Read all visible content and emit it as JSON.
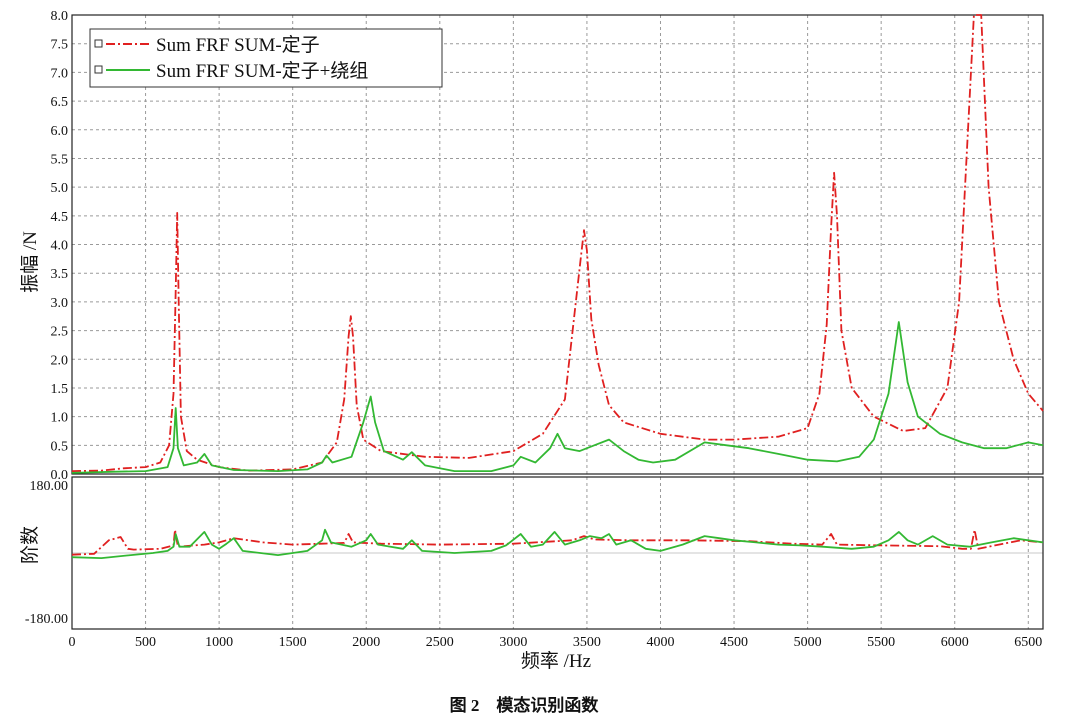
{
  "caption": "图 2　模态识别函数",
  "chart_data": [
    {
      "type": "line",
      "panel": "magnitude",
      "ylabel": "振幅 /N",
      "xlabel": "频率 /Hz",
      "xlim": [
        0,
        6600
      ],
      "ylim": [
        0,
        8.0
      ],
      "x_ticks": [
        "0",
        "500",
        "1000",
        "1500",
        "2000",
        "2500",
        "3000",
        "3500",
        "4000",
        "4500",
        "5000",
        "5500",
        "6000",
        "6500"
      ],
      "y_ticks": [
        "0.0",
        "0.5",
        "1.0",
        "1.5",
        "2.0",
        "2.5",
        "3.0",
        "3.5",
        "4.0",
        "4.5",
        "5.0",
        "5.5",
        "6.0",
        "6.5",
        "7.0",
        "7.5",
        "8.0"
      ],
      "grid": true,
      "legend_position": "top-left",
      "series": [
        {
          "name": "Sum FRF SUM-定子",
          "color": "#e02020",
          "style": "dash-dot",
          "points": [
            [
              0,
              0.05
            ],
            [
              200,
              0.06
            ],
            [
              350,
              0.1
            ],
            [
              500,
              0.12
            ],
            [
              600,
              0.2
            ],
            [
              660,
              0.5
            ],
            [
              690,
              1.4
            ],
            [
              705,
              3.2
            ],
            [
              715,
              4.55
            ],
            [
              725,
              3.0
            ],
            [
              740,
              1.0
            ],
            [
              780,
              0.4
            ],
            [
              850,
              0.25
            ],
            [
              1000,
              0.12
            ],
            [
              1200,
              0.06
            ],
            [
              1500,
              0.08
            ],
            [
              1700,
              0.2
            ],
            [
              1800,
              0.55
            ],
            [
              1850,
              1.3
            ],
            [
              1880,
              2.4
            ],
            [
              1895,
              2.75
            ],
            [
              1910,
              2.4
            ],
            [
              1935,
              1.2
            ],
            [
              1980,
              0.6
            ],
            [
              2100,
              0.4
            ],
            [
              2400,
              0.3
            ],
            [
              2700,
              0.28
            ],
            [
              3000,
              0.4
            ],
            [
              3200,
              0.7
            ],
            [
              3350,
              1.3
            ],
            [
              3420,
              2.9
            ],
            [
              3460,
              3.8
            ],
            [
              3480,
              4.25
            ],
            [
              3500,
              3.9
            ],
            [
              3530,
              2.7
            ],
            [
              3580,
              1.9
            ],
            [
              3650,
              1.2
            ],
            [
              3750,
              0.9
            ],
            [
              4000,
              0.7
            ],
            [
              4300,
              0.6
            ],
            [
              4500,
              0.6
            ],
            [
              4800,
              0.65
            ],
            [
              5000,
              0.8
            ],
            [
              5080,
              1.4
            ],
            [
              5130,
              2.6
            ],
            [
              5160,
              4.3
            ],
            [
              5180,
              5.25
            ],
            [
              5200,
              4.5
            ],
            [
              5230,
              2.5
            ],
            [
              5300,
              1.5
            ],
            [
              5450,
              1.0
            ],
            [
              5650,
              0.75
            ],
            [
              5800,
              0.8
            ],
            [
              5950,
              1.5
            ],
            [
              6030,
              3.0
            ],
            [
              6090,
              6.0
            ],
            [
              6130,
              8.0
            ],
            [
              6180,
              8.0
            ],
            [
              6230,
              5.0
            ],
            [
              6300,
              3.0
            ],
            [
              6400,
              2.0
            ],
            [
              6500,
              1.4
            ],
            [
              6600,
              1.1
            ]
          ]
        },
        {
          "name": "Sum FRF SUM-定子+绕组",
          "color": "#33b833",
          "style": "solid",
          "points": [
            [
              0,
              0.02
            ],
            [
              300,
              0.04
            ],
            [
              500,
              0.05
            ],
            [
              650,
              0.12
            ],
            [
              690,
              0.45
            ],
            [
              705,
              1.15
            ],
            [
              720,
              0.45
            ],
            [
              760,
              0.15
            ],
            [
              850,
              0.2
            ],
            [
              900,
              0.35
            ],
            [
              950,
              0.15
            ],
            [
              1100,
              0.07
            ],
            [
              1400,
              0.05
            ],
            [
              1600,
              0.08
            ],
            [
              1700,
              0.2
            ],
            [
              1730,
              0.32
            ],
            [
              1770,
              0.2
            ],
            [
              1900,
              0.3
            ],
            [
              1980,
              0.9
            ],
            [
              2030,
              1.35
            ],
            [
              2060,
              0.9
            ],
            [
              2120,
              0.4
            ],
            [
              2250,
              0.25
            ],
            [
              2310,
              0.38
            ],
            [
              2400,
              0.15
            ],
            [
              2600,
              0.05
            ],
            [
              2850,
              0.05
            ],
            [
              3000,
              0.15
            ],
            [
              3050,
              0.3
            ],
            [
              3150,
              0.2
            ],
            [
              3250,
              0.45
            ],
            [
              3300,
              0.7
            ],
            [
              3350,
              0.45
            ],
            [
              3450,
              0.4
            ],
            [
              3550,
              0.5
            ],
            [
              3650,
              0.6
            ],
            [
              3750,
              0.4
            ],
            [
              3850,
              0.25
            ],
            [
              3950,
              0.2
            ],
            [
              4100,
              0.25
            ],
            [
              4300,
              0.55
            ],
            [
              4450,
              0.5
            ],
            [
              4600,
              0.45
            ],
            [
              4800,
              0.35
            ],
            [
              5000,
              0.25
            ],
            [
              5200,
              0.22
            ],
            [
              5350,
              0.3
            ],
            [
              5450,
              0.6
            ],
            [
              5550,
              1.4
            ],
            [
              5620,
              2.65
            ],
            [
              5680,
              1.6
            ],
            [
              5750,
              1.0
            ],
            [
              5900,
              0.7
            ],
            [
              6050,
              0.55
            ],
            [
              6200,
              0.45
            ],
            [
              6350,
              0.45
            ],
            [
              6500,
              0.55
            ],
            [
              6600,
              0.5
            ]
          ]
        }
      ]
    },
    {
      "type": "line",
      "panel": "phase",
      "ylabel": "阶数",
      "xlim": [
        0,
        6600
      ],
      "ylim": [
        -180,
        180
      ],
      "y_ticks": [
        "180.00",
        "-180.00"
      ],
      "series": [
        {
          "name": "Sum FRF SUM-定子",
          "color": "#e02020",
          "style": "dash-dot",
          "points": [
            [
              0,
              -4
            ],
            [
              150,
              -2
            ],
            [
              250,
              30
            ],
            [
              330,
              38
            ],
            [
              380,
              10
            ],
            [
              420,
              8
            ],
            [
              600,
              10
            ],
            [
              690,
              18
            ],
            [
              700,
              55
            ],
            [
              720,
              15
            ],
            [
              900,
              20
            ],
            [
              1000,
              25
            ],
            [
              1100,
              35
            ],
            [
              1300,
              25
            ],
            [
              1500,
              20
            ],
            [
              1700,
              22
            ],
            [
              1850,
              24
            ],
            [
              1880,
              45
            ],
            [
              1910,
              25
            ],
            [
              2100,
              22
            ],
            [
              2500,
              20
            ],
            [
              3000,
              22
            ],
            [
              3400,
              30
            ],
            [
              3480,
              40
            ],
            [
              3550,
              32
            ],
            [
              3800,
              30
            ],
            [
              4200,
              30
            ],
            [
              4600,
              28
            ],
            [
              4900,
              22
            ],
            [
              5100,
              20
            ],
            [
              5160,
              45
            ],
            [
              5200,
              20
            ],
            [
              5500,
              18
            ],
            [
              5900,
              16
            ],
            [
              6050,
              10
            ],
            [
              6110,
              10
            ],
            [
              6135,
              55
            ],
            [
              6160,
              10
            ],
            [
              6300,
              20
            ],
            [
              6450,
              30
            ],
            [
              6600,
              25
            ]
          ]
        },
        {
          "name": "Sum FRF SUM-定子+绕组",
          "color": "#33b833",
          "style": "solid",
          "points": [
            [
              0,
              -10
            ],
            [
              200,
              -12
            ],
            [
              400,
              -5
            ],
            [
              550,
              0
            ],
            [
              650,
              5
            ],
            [
              690,
              15
            ],
            [
              705,
              45
            ],
            [
              730,
              15
            ],
            [
              800,
              15
            ],
            [
              900,
              50
            ],
            [
              950,
              20
            ],
            [
              1000,
              10
            ],
            [
              1050,
              22
            ],
            [
              1100,
              35
            ],
            [
              1160,
              5
            ],
            [
              1400,
              -5
            ],
            [
              1600,
              5
            ],
            [
              1700,
              30
            ],
            [
              1720,
              55
            ],
            [
              1760,
              25
            ],
            [
              1900,
              15
            ],
            [
              2000,
              30
            ],
            [
              2030,
              45
            ],
            [
              2080,
              20
            ],
            [
              2250,
              10
            ],
            [
              2310,
              30
            ],
            [
              2380,
              5
            ],
            [
              2600,
              0
            ],
            [
              2850,
              5
            ],
            [
              2950,
              18
            ],
            [
              3050,
              45
            ],
            [
              3120,
              15
            ],
            [
              3200,
              20
            ],
            [
              3280,
              50
            ],
            [
              3350,
              20
            ],
            [
              3450,
              30
            ],
            [
              3520,
              40
            ],
            [
              3600,
              35
            ],
            [
              3650,
              45
            ],
            [
              3700,
              20
            ],
            [
              3800,
              30
            ],
            [
              3900,
              10
            ],
            [
              4000,
              5
            ],
            [
              4150,
              20
            ],
            [
              4300,
              40
            ],
            [
              4400,
              35
            ],
            [
              4500,
              30
            ],
            [
              4650,
              25
            ],
            [
              4800,
              20
            ],
            [
              4950,
              18
            ],
            [
              5100,
              15
            ],
            [
              5300,
              10
            ],
            [
              5450,
              15
            ],
            [
              5550,
              30
            ],
            [
              5620,
              50
            ],
            [
              5680,
              30
            ],
            [
              5750,
              20
            ],
            [
              5850,
              40
            ],
            [
              5950,
              20
            ],
            [
              6100,
              15
            ],
            [
              6250,
              25
            ],
            [
              6400,
              35
            ],
            [
              6500,
              30
            ],
            [
              6600,
              25
            ]
          ]
        }
      ]
    }
  ]
}
